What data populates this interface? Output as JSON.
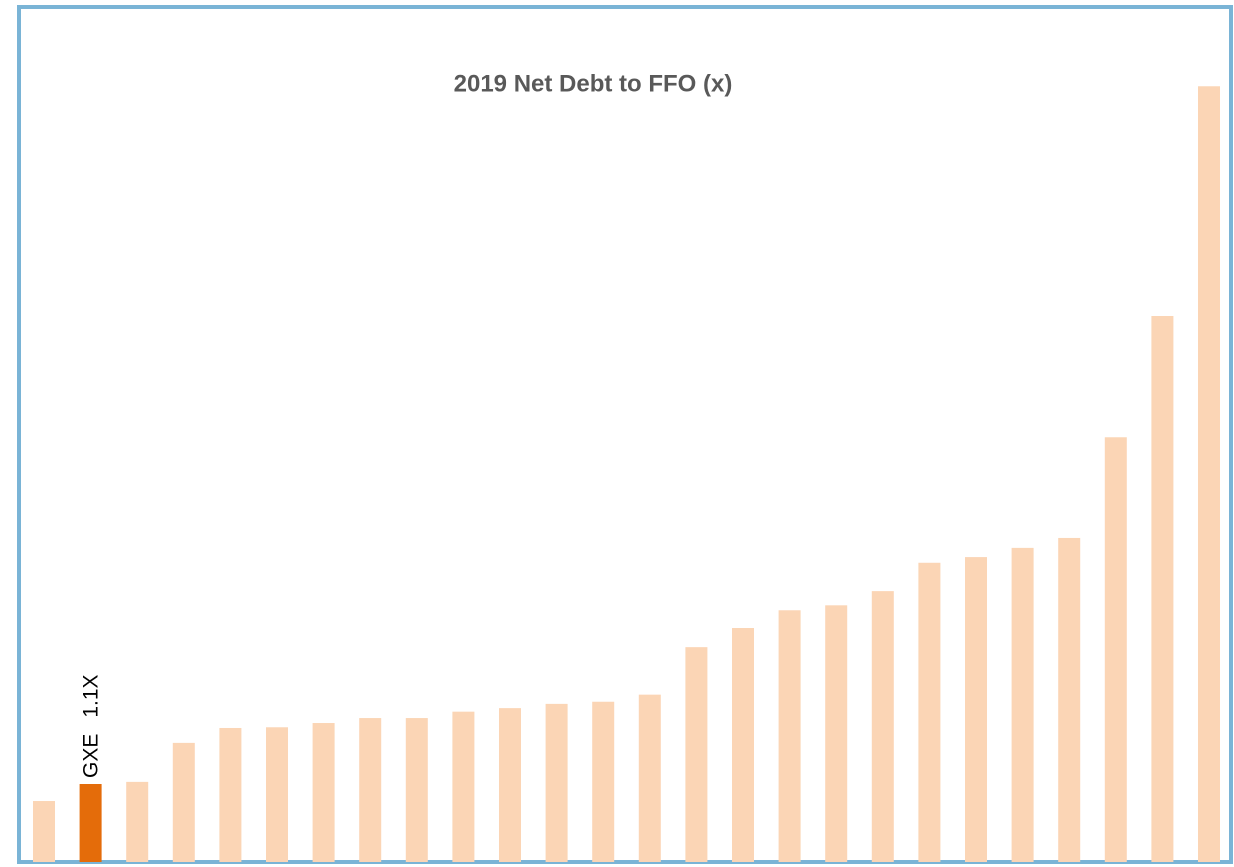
{
  "chart_data": {
    "type": "bar",
    "title": "2019 Net Debt to FFO (x)",
    "categories": [
      null,
      "GXE",
      null,
      null,
      null,
      null,
      null,
      null,
      null,
      null,
      null,
      null,
      null,
      null,
      null,
      null,
      null,
      null,
      null,
      null,
      null,
      null,
      null,
      null,
      null,
      null
    ],
    "values": [
      0.86,
      1.1,
      1.13,
      1.68,
      1.89,
      1.9,
      1.96,
      2.03,
      2.03,
      2.12,
      2.17,
      2.23,
      2.26,
      2.36,
      3.03,
      3.3,
      3.55,
      3.62,
      3.82,
      4.22,
      4.3,
      4.43,
      4.57,
      5.99,
      7.7,
      10.94
    ],
    "value_labels": [
      null,
      "1.1X",
      null,
      null,
      null,
      null,
      null,
      null,
      null,
      null,
      null,
      null,
      null,
      null,
      null,
      null,
      null,
      null,
      null,
      null,
      null,
      null,
      null,
      null,
      null,
      null
    ],
    "colors": [
      "#fbd5b5",
      "#e46c0a",
      "#fbd5b5",
      "#fbd5b5",
      "#fbd5b5",
      "#fbd5b5",
      "#fbd5b5",
      "#fbd5b5",
      "#fbd5b5",
      "#fbd5b5",
      "#fbd5b5",
      "#fbd5b5",
      "#fbd5b5",
      "#fbd5b5",
      "#fbd5b5",
      "#fbd5b5",
      "#fbd5b5",
      "#fbd5b5",
      "#fbd5b5",
      "#fbd5b5",
      "#fbd5b5",
      "#fbd5b5",
      "#fbd5b5",
      "#fbd5b5",
      "#fbd5b5",
      "#fbd5b5"
    ],
    "ylim": [
      0,
      11
    ]
  }
}
